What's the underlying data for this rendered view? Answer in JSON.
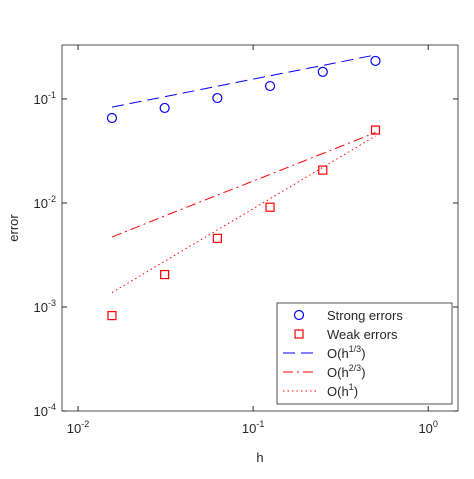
{
  "chart_data": {
    "type": "line",
    "xlabel": "h",
    "ylabel": "error",
    "xscale": "log",
    "yscale": "log",
    "x": [
      0.015625,
      0.03125,
      0.0625,
      0.125,
      0.25,
      0.5
    ],
    "series": [
      {
        "name": "Strong errors",
        "color": "#0000ff",
        "marker": "circle",
        "linestyle": "none",
        "values": [
          0.0656,
          0.0819,
          0.102,
          0.133,
          0.182,
          0.232
        ]
      },
      {
        "name": "Weak errors",
        "color": "#ff0000",
        "marker": "square",
        "linestyle": "none",
        "values": [
          0.000826,
          0.00205,
          0.00457,
          0.0091,
          0.0207,
          0.0502
        ]
      },
      {
        "name": "O(h1/3)",
        "color": "#0000ff",
        "marker": "none",
        "linestyle": "dashed",
        "values": [
          0.0835,
          0.105,
          0.1325,
          0.167,
          0.21,
          0.265
        ]
      },
      {
        "name": "O(h2/3)",
        "color": "#ff0000",
        "marker": "none",
        "linestyle": "dashdot",
        "values": [
          0.0047,
          0.0075,
          0.0119,
          0.0188,
          0.0299,
          0.0475
        ]
      },
      {
        "name": "O(h1)",
        "color": "#ff0000",
        "marker": "none",
        "linestyle": "dotted",
        "values": [
          0.001375,
          0.00275,
          0.0055,
          0.011,
          0.022,
          0.044
        ]
      }
    ],
    "xlim": [
      0.0081,
      1.48
    ],
    "ylim": [
      0.0001,
      0.33
    ],
    "xticks": [
      {
        "value": 0.01,
        "label": "10-2"
      },
      {
        "value": 0.1,
        "label": "10-1"
      },
      {
        "value": 1,
        "label": "100"
      }
    ],
    "yticks": [
      {
        "value": 0.0001,
        "label": "10-4"
      },
      {
        "value": 0.001,
        "label": "10-3"
      },
      {
        "value": 0.01,
        "label": "10-2"
      },
      {
        "value": 0.1,
        "label": "10-1"
      }
    ],
    "legend": "lower right",
    "grid": false
  }
}
